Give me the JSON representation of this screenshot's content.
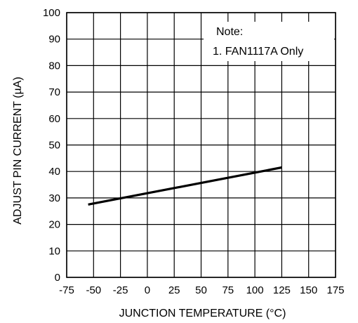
{
  "chart_data": {
    "type": "line",
    "xlabel": "JUNCTION TEMPERATURE (°C)",
    "ylabel": "ADJUST PIN CURRENT (µA)",
    "xlim": [
      -75,
      175
    ],
    "ylim": [
      0,
      100
    ],
    "x_ticks": [
      -75,
      -50,
      -25,
      0,
      25,
      50,
      75,
      100,
      125,
      150,
      175
    ],
    "x_tick_labels": [
      "-75",
      "-50",
      "-25",
      "0",
      "25",
      "50",
      "75",
      "100",
      "125",
      "150",
      "175"
    ],
    "y_ticks": [
      0,
      10,
      20,
      30,
      40,
      50,
      60,
      70,
      80,
      90,
      100
    ],
    "y_tick_labels": [
      "0",
      "10",
      "20",
      "30",
      "40",
      "50",
      "60",
      "70",
      "80",
      "90",
      "100"
    ],
    "grid": true,
    "series": [
      {
        "x": [
          -55,
          125
        ],
        "y": [
          27.5,
          41.5
        ]
      }
    ],
    "annotation": {
      "title": "Note:",
      "text": "1. FAN1117A Only"
    }
  }
}
